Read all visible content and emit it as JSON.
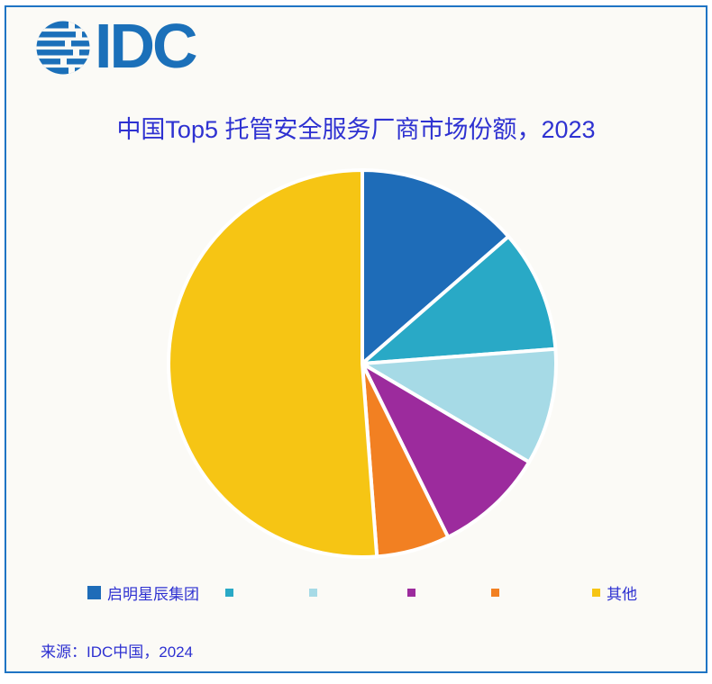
{
  "logo": {
    "text": "IDC"
  },
  "title": "中国Top5 托管安全服务厂商市场份额，2023",
  "source": "来源：IDC中国，2024",
  "colors": {
    "frame_border": "#1f74c4",
    "background": "#fbfaf6",
    "logo_blue": "#1b70b9",
    "text_blue": "#2e31d1",
    "slice_separator": "#ffffff"
  },
  "chart_data": {
    "type": "pie",
    "title": "中国Top5 托管安全服务厂商市场份额，2023",
    "start_angle_deg": 0,
    "direction": "clockwise",
    "values_shown_on_chart": false,
    "legend_position": "bottom",
    "slices": [
      {
        "label": "启明星辰集团",
        "value_pct": 13.6,
        "color": "#1e6cb8"
      },
      {
        "label": "",
        "value_pct": 10.2,
        "color": "#29a9c6"
      },
      {
        "label": "",
        "value_pct": 9.7,
        "color": "#a6dae6"
      },
      {
        "label": "",
        "value_pct": 9.2,
        "color": "#9c2b9d"
      },
      {
        "label": "",
        "value_pct": 6.1,
        "color": "#f28022"
      },
      {
        "label": "其他",
        "value_pct": 51.2,
        "color": "#f6c514"
      }
    ]
  }
}
